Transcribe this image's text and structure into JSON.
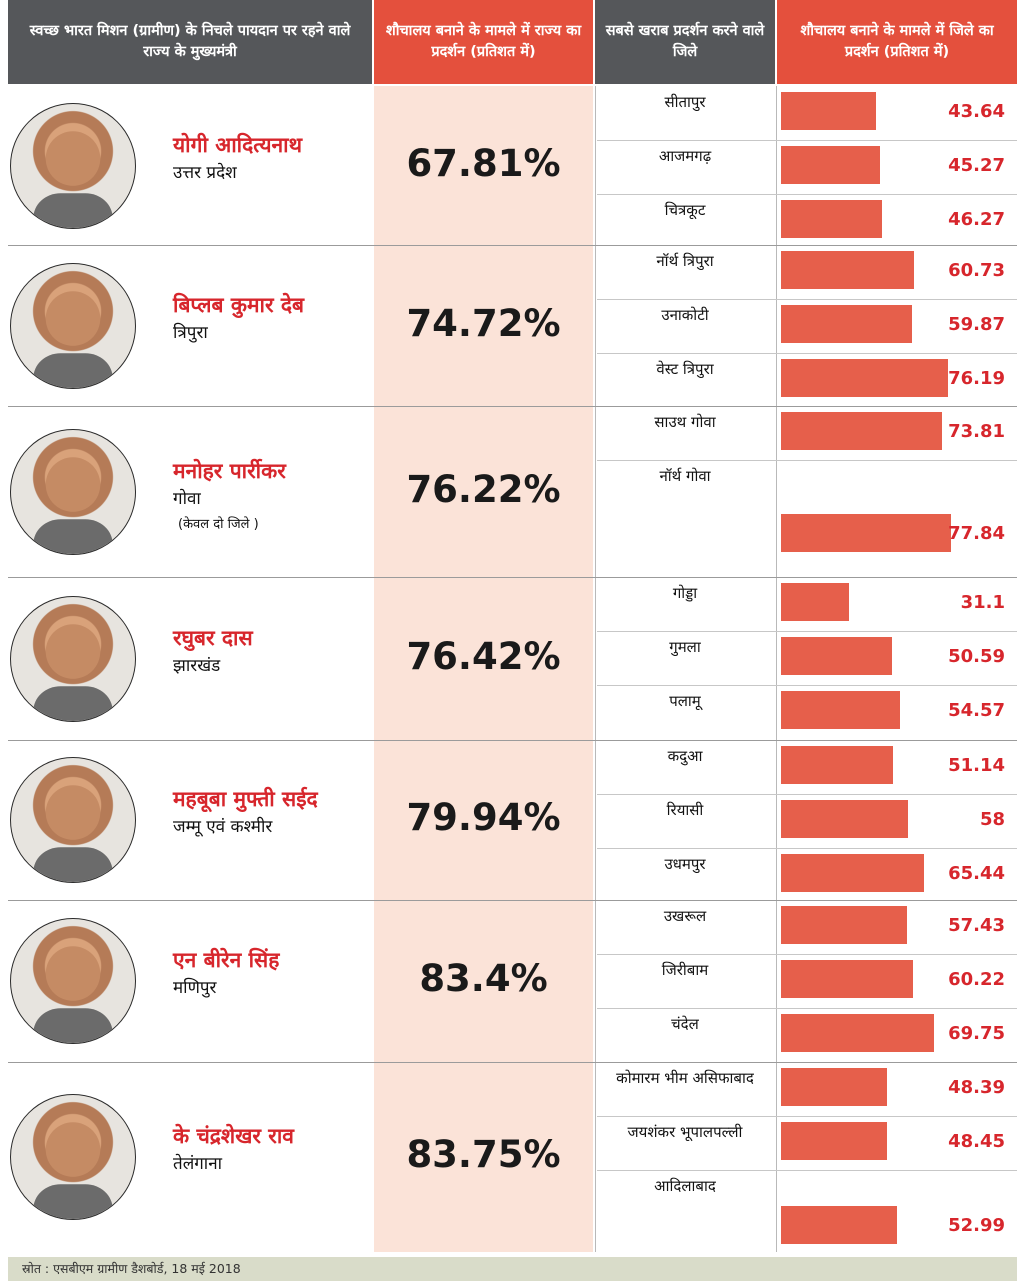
{
  "headers": [
    "स्वच्छ भारत मिशन (ग्रामीण) के निचले पायदान पर रहने वाले राज्य के मुख्यमंत्री",
    "शौचालय बनाने के मामले में राज्य का प्रदर्शन (प्रतिशत में)",
    "सबसे खराब प्रदर्शन करने वाले जिले",
    "शौचालय बनाने के मामले में जिले का प्रदर्शन (प्रतिशत में)"
  ],
  "chart_data": {
    "type": "bar",
    "orientation": "horizontal",
    "xlim": [
      0,
      80
    ],
    "colors": {
      "bar": "#e65f4b",
      "value": "#d7262c",
      "header_dark": "#55575a",
      "header_red": "#e4503d",
      "pct_bg": "#fbe3d8"
    },
    "states": [
      {
        "cm": "योगी आदित्यनाथ",
        "state": "उत्तर प्रदेश",
        "note": "",
        "state_pct": "67.81%",
        "districts": [
          {
            "name": "सीतापुर",
            "value": 43.64,
            "label": "43.64"
          },
          {
            "name": "आजमगढ़",
            "value": 45.27,
            "label": "45.27"
          },
          {
            "name": "चित्रकूट",
            "value": 46.27,
            "label": "46.27"
          }
        ]
      },
      {
        "cm": "बिप्लब कुमार देब",
        "state": "त्रिपुरा",
        "note": "",
        "state_pct": "74.72%",
        "districts": [
          {
            "name": "नॉर्थ त्रिपुरा",
            "value": 60.73,
            "label": "60.73"
          },
          {
            "name": "उनाकोटी",
            "value": 59.87,
            "label": "59.87"
          },
          {
            "name": "वेस्ट त्रिपुरा",
            "value": 76.19,
            "label": "76.19"
          }
        ]
      },
      {
        "cm": "मनोहर पार्रीकर",
        "state": "गोवा",
        "note": "(केवल दो जिले )",
        "state_pct": "76.22%",
        "districts": [
          {
            "name": "साउथ गोवा",
            "value": 73.81,
            "label": "73.81"
          },
          {
            "name": "नॉर्थ गोवा",
            "value": 77.84,
            "label": "77.84"
          }
        ]
      },
      {
        "cm": "रघुबर दास",
        "state": "झारखंड",
        "note": "",
        "state_pct": "76.42%",
        "districts": [
          {
            "name": "गोड्डा",
            "value": 31.1,
            "label": "31.1"
          },
          {
            "name": "गुमला",
            "value": 50.59,
            "label": "50.59"
          },
          {
            "name": "पलामू",
            "value": 54.57,
            "label": "54.57"
          }
        ]
      },
      {
        "cm": "महबूबा मुफ्ती सईद",
        "state": "जम्मू एवं कश्मीर",
        "note": "",
        "state_pct": "79.94%",
        "districts": [
          {
            "name": "कदुआ",
            "value": 51.14,
            "label": "51.14"
          },
          {
            "name": "रियासी",
            "value": 58,
            "label": "58"
          },
          {
            "name": "उधमपुर",
            "value": 65.44,
            "label": "65.44"
          }
        ]
      },
      {
        "cm": "एन बीरेन सिंह",
        "state": "मणिपुर",
        "note": "",
        "state_pct": "83.4%",
        "districts": [
          {
            "name": "उखरूल",
            "value": 57.43,
            "label": "57.43"
          },
          {
            "name": "जिरीबाम",
            "value": 60.22,
            "label": "60.22"
          },
          {
            "name": "चंदेल",
            "value": 69.75,
            "label": "69.75"
          }
        ]
      },
      {
        "cm": "के चंद्रशेखर राव",
        "state": "तेलंगाना",
        "note": "",
        "state_pct": "83.75%",
        "districts": [
          {
            "name": "कोमारम भीम असिफाबाद",
            "value": 48.39,
            "label": "48.39"
          },
          {
            "name": "जयशंकर भूपालपल्ली",
            "value": 48.45,
            "label": "48.45"
          },
          {
            "name": "आदिलाबाद",
            "value": 52.99,
            "label": "52.99"
          }
        ]
      }
    ]
  },
  "footer": "स्रोत : एसबीएम ग्रामीण डैशबोर्ड, 18 मई 2018"
}
